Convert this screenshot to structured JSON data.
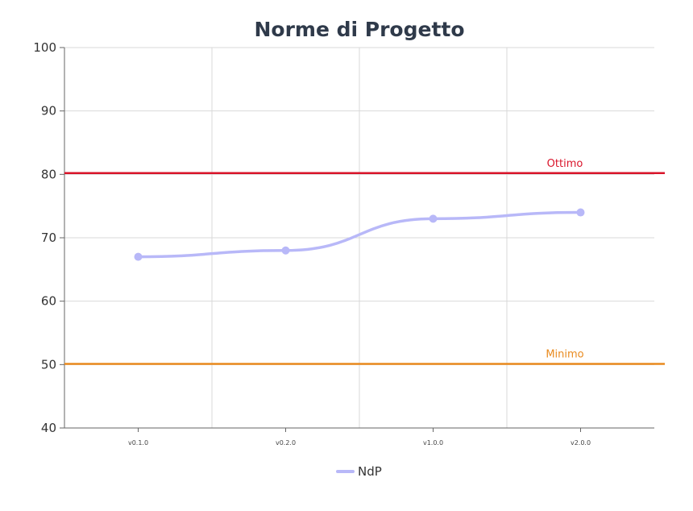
{
  "chart_data": {
    "type": "line",
    "title": "Norme di Progetto",
    "xlabel": "",
    "ylabel": "",
    "categories": [
      "v0.1.0",
      "v0.2.0",
      "v1.0.0",
      "v2.0.0"
    ],
    "series": [
      {
        "name": "NdP",
        "values": [
          67,
          68,
          73,
          74
        ],
        "color": "#b8b8f8",
        "smooth": true
      }
    ],
    "reference_lines": [
      {
        "label": "Ottimo",
        "value": 80.2,
        "color": "#d9142a"
      },
      {
        "label": "Minimo",
        "value": 50.1,
        "color": "#e98a1e"
      }
    ],
    "ylim": [
      40,
      100
    ],
    "yticks": [
      40,
      50,
      60,
      70,
      80,
      90,
      100
    ],
    "grid": true,
    "legend": "bottom-center"
  }
}
